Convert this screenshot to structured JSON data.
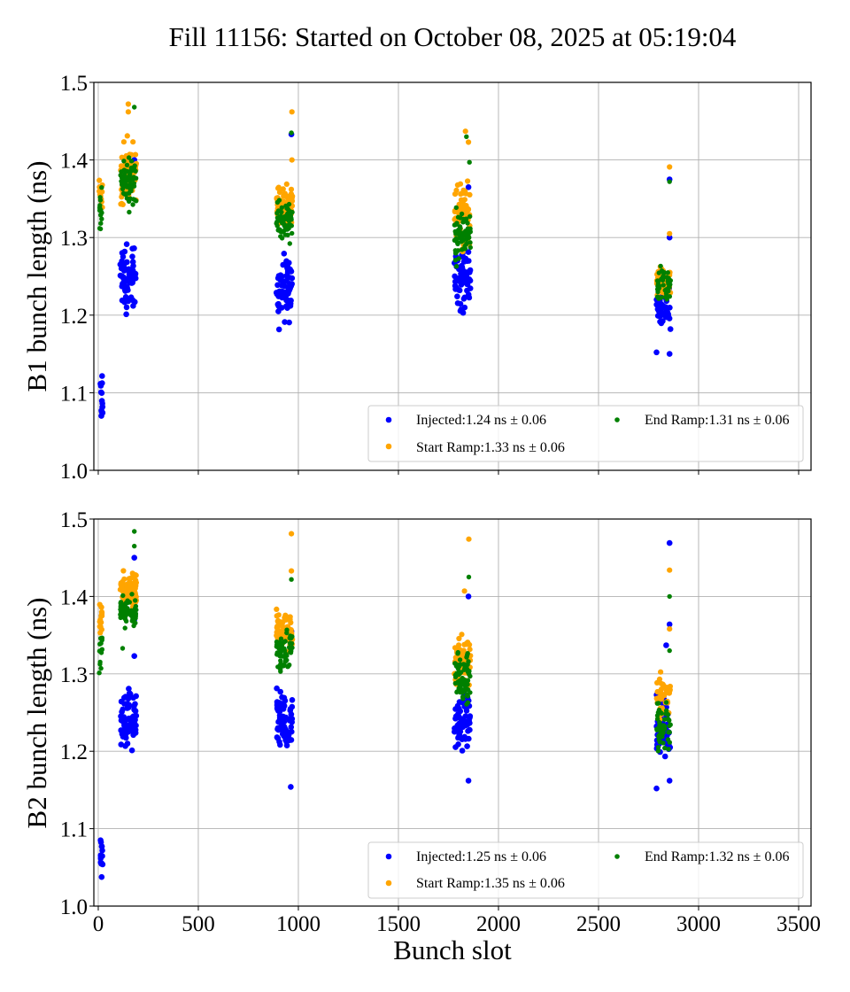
{
  "figure": {
    "title": "Fill 11156: Started on October 08, 2025 at 05:19:04",
    "xlabel": "Bunch slot"
  },
  "colors": {
    "injected": "#0000ff",
    "start_ramp": "#ffa500",
    "end_ramp": "#008000",
    "grid": "#b0b0b0",
    "legend_border": "#cccccc"
  },
  "chart_data": [
    {
      "type": "scatter",
      "panel": "top",
      "title": "Fill 11156: Started on October 08, 2025 at 05:19:04",
      "xlabel": "",
      "ylabel": "B1 bunch length (ns)",
      "xlim": [
        -22,
        3562
      ],
      "ylim": [
        1.0,
        1.5
      ],
      "xticks": [
        0,
        500,
        1000,
        1500,
        2000,
        2500,
        3000,
        3500
      ],
      "xtick_labels_visible": false,
      "yticks": [
        1.0,
        1.1,
        1.2,
        1.3,
        1.4,
        1.5
      ],
      "ytick_labels": [
        "1.0",
        "1.1",
        "1.2",
        "1.3",
        "1.4",
        "1.5"
      ],
      "grid": true,
      "legend": {
        "placement": "lower-right",
        "columns": 2,
        "entries": [
          {
            "series": "injected",
            "label": "Injected:1.24 ns ± 0.06"
          },
          {
            "series": "start_ramp",
            "label": "Start Ramp:1.33 ns ± 0.06"
          },
          {
            "series": "end_ramp",
            "label": "End Ramp:1.31 ns ± 0.06"
          }
        ]
      },
      "series": [
        {
          "name": "injected",
          "label": "Injected",
          "mean": 1.24,
          "std": 0.06,
          "clusters": [
            {
              "x": [
                10,
                22
              ],
              "y": [
                1.035,
                1.14
              ],
              "n": 14
            },
            {
              "x": [
                110,
                190
              ],
              "y": [
                1.175,
                1.32
              ],
              "n": 70
            },
            {
              "x": [
                890,
                970
              ],
              "y": [
                1.155,
                1.31
              ],
              "n": 70
            },
            {
              "x": [
                1780,
                1860
              ],
              "y": [
                1.18,
                1.31
              ],
              "n": 60
            },
            {
              "x": [
                2790,
                2860
              ],
              "y": [
                1.15,
                1.27
              ],
              "n": 40
            }
          ],
          "outliers": [
            [
              180,
              1.4
            ],
            [
              965,
              1.433
            ],
            [
              1850,
              1.365
            ],
            [
              2855,
              1.375
            ],
            [
              2855,
              1.3
            ],
            [
              2790,
              1.152
            ],
            [
              2855,
              1.15
            ]
          ]
        },
        {
          "name": "start_ramp",
          "label": "Start Ramp",
          "mean": 1.33,
          "std": 0.06,
          "clusters": [
            {
              "x": [
                5,
                20
              ],
              "y": [
                1.31,
                1.4
              ],
              "n": 14
            },
            {
              "x": [
                110,
                190
              ],
              "y": [
                1.32,
                1.445
              ],
              "n": 80
            },
            {
              "x": [
                890,
                970
              ],
              "y": [
                1.3,
                1.385
              ],
              "n": 70
            },
            {
              "x": [
                1780,
                1860
              ],
              "y": [
                1.26,
                1.4
              ],
              "n": 70
            },
            {
              "x": [
                2790,
                2860
              ],
              "y": [
                1.21,
                1.28
              ],
              "n": 45
            }
          ],
          "outliers": [
            [
              150,
              1.472
            ],
            [
              150,
              1.462
            ],
            [
              968,
              1.462
            ],
            [
              968,
              1.4
            ],
            [
              1835,
              1.437
            ],
            [
              1850,
              1.423
            ],
            [
              2855,
              1.391
            ],
            [
              2855,
              1.305
            ]
          ]
        },
        {
          "name": "end_ramp",
          "label": "End Ramp",
          "mean": 1.31,
          "std": 0.06,
          "clusters": [
            {
              "x": [
                5,
                20
              ],
              "y": [
                1.285,
                1.385
              ],
              "n": 14
            },
            {
              "x": [
                110,
                190
              ],
              "y": [
                1.31,
                1.43
              ],
              "n": 75
            },
            {
              "x": [
                890,
                970
              ],
              "y": [
                1.27,
                1.37
              ],
              "n": 70
            },
            {
              "x": [
                1780,
                1860
              ],
              "y": [
                1.25,
                1.36
              ],
              "n": 65
            },
            {
              "x": [
                2790,
                2860
              ],
              "y": [
                1.2,
                1.28
              ],
              "n": 45
            }
          ],
          "outliers": [
            [
              180,
              1.468
            ],
            [
              965,
              1.435
            ],
            [
              1840,
              1.43
            ],
            [
              1855,
              1.397
            ],
            [
              2855,
              1.372
            ]
          ]
        }
      ]
    },
    {
      "type": "scatter",
      "panel": "bottom",
      "title": "",
      "xlabel": "Bunch slot",
      "ylabel": "B2 bunch length (ns)",
      "xlim": [
        -22,
        3562
      ],
      "ylim": [
        1.0,
        1.5
      ],
      "xticks": [
        0,
        500,
        1000,
        1500,
        2000,
        2500,
        3000,
        3500
      ],
      "xtick_labels": [
        "0",
        "500",
        "1000",
        "1500",
        "2000",
        "2500",
        "3000",
        "3500"
      ],
      "yticks": [
        1.0,
        1.1,
        1.2,
        1.3,
        1.4,
        1.5
      ],
      "ytick_labels": [
        "1.0",
        "1.1",
        "1.2",
        "1.3",
        "1.4",
        "1.5"
      ],
      "grid": true,
      "legend": {
        "placement": "lower-right",
        "columns": 2,
        "entries": [
          {
            "series": "injected",
            "label": "Injected:1.25 ns ± 0.06"
          },
          {
            "series": "start_ramp",
            "label": "Start Ramp:1.35 ns ± 0.06"
          },
          {
            "series": "end_ramp",
            "label": "End Ramp:1.32 ns ± 0.06"
          }
        ]
      },
      "series": [
        {
          "name": "injected",
          "label": "Injected",
          "mean": 1.25,
          "std": 0.06,
          "clusters": [
            {
              "x": [
                8,
                22
              ],
              "y": [
                1.025,
                1.113
              ],
              "n": 14
            },
            {
              "x": [
                110,
                190
              ],
              "y": [
                1.18,
                1.3
              ],
              "n": 70
            },
            {
              "x": [
                890,
                970
              ],
              "y": [
                1.18,
                1.3
              ],
              "n": 70
            },
            {
              "x": [
                1780,
                1860
              ],
              "y": [
                1.18,
                1.3
              ],
              "n": 60
            },
            {
              "x": [
                2790,
                2860
              ],
              "y": [
                1.16,
                1.31
              ],
              "n": 45
            }
          ],
          "outliers": [
            [
              180,
              1.45
            ],
            [
              180,
              1.37
            ],
            [
              180,
              1.323
            ],
            [
              965,
              1.355
            ],
            [
              962,
              1.154
            ],
            [
              1850,
              1.4
            ],
            [
              1850,
              1.162
            ],
            [
              2855,
              1.469
            ],
            [
              2855,
              1.364
            ],
            [
              2838,
              1.337
            ],
            [
              2790,
              1.152
            ],
            [
              2855,
              1.162
            ]
          ]
        },
        {
          "name": "start_ramp",
          "label": "Start Ramp",
          "mean": 1.35,
          "std": 0.06,
          "clusters": [
            {
              "x": [
                5,
                20
              ],
              "y": [
                1.33,
                1.415
              ],
              "n": 14
            },
            {
              "x": [
                110,
                190
              ],
              "y": [
                1.36,
                1.455
              ],
              "n": 80
            },
            {
              "x": [
                890,
                970
              ],
              "y": [
                1.31,
                1.4
              ],
              "n": 75
            },
            {
              "x": [
                1780,
                1860
              ],
              "y": [
                1.26,
                1.375
              ],
              "n": 75
            },
            {
              "x": [
                2790,
                2860
              ],
              "y": [
                1.23,
                1.31
              ],
              "n": 50
            }
          ],
          "outliers": [
            [
              965,
              1.481
            ],
            [
              965,
              1.433
            ],
            [
              1852,
              1.474
            ],
            [
              1830,
              1.407
            ],
            [
              2855,
              1.434
            ],
            [
              2855,
              1.358
            ]
          ]
        },
        {
          "name": "end_ramp",
          "label": "End Ramp",
          "mean": 1.32,
          "std": 0.06,
          "clusters": [
            {
              "x": [
                5,
                20
              ],
              "y": [
                1.284,
                1.385
              ],
              "n": 14
            },
            {
              "x": [
                110,
                190
              ],
              "y": [
                1.35,
                1.41
              ],
              "n": 75
            },
            {
              "x": [
                890,
                970
              ],
              "y": [
                1.29,
                1.37
              ],
              "n": 70
            },
            {
              "x": [
                1780,
                1860
              ],
              "y": [
                1.24,
                1.36
              ],
              "n": 70
            },
            {
              "x": [
                2790,
                2860
              ],
              "y": [
                1.17,
                1.29
              ],
              "n": 50
            }
          ],
          "outliers": [
            [
              180,
              1.484
            ],
            [
              180,
              1.465
            ],
            [
              122,
              1.333
            ],
            [
              965,
              1.422
            ],
            [
              1852,
              1.425
            ],
            [
              2855,
              1.4
            ],
            [
              2855,
              1.33
            ]
          ]
        }
      ]
    }
  ]
}
